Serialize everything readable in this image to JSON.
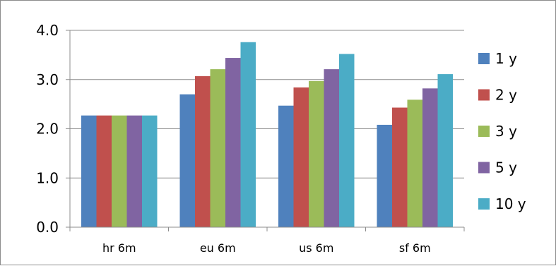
{
  "chart_data": {
    "type": "bar",
    "categories": [
      "hr 6m",
      "eu 6m",
      "us 6m",
      "sf 6m"
    ],
    "series": [
      {
        "name": "1 y",
        "color": "#4F81BD",
        "values": [
          2.27,
          2.7,
          2.47,
          2.08
        ]
      },
      {
        "name": "2 y",
        "color": "#C0504D",
        "values": [
          2.27,
          3.07,
          2.84,
          2.43
        ]
      },
      {
        "name": "3 y",
        "color": "#9BBB59",
        "values": [
          2.27,
          3.21,
          2.97,
          2.59
        ]
      },
      {
        "name": "5 y",
        "color": "#8064A2",
        "values": [
          2.27,
          3.44,
          3.21,
          2.82
        ]
      },
      {
        "name": "10 y",
        "color": "#4BACC6",
        "values": [
          2.27,
          3.76,
          3.52,
          3.11
        ]
      }
    ],
    "y_ticks": [
      "0.0",
      "1.0",
      "2.0",
      "3.0",
      "4.0"
    ],
    "ylim": [
      0,
      4
    ],
    "grid": true,
    "legend_position": "right"
  }
}
